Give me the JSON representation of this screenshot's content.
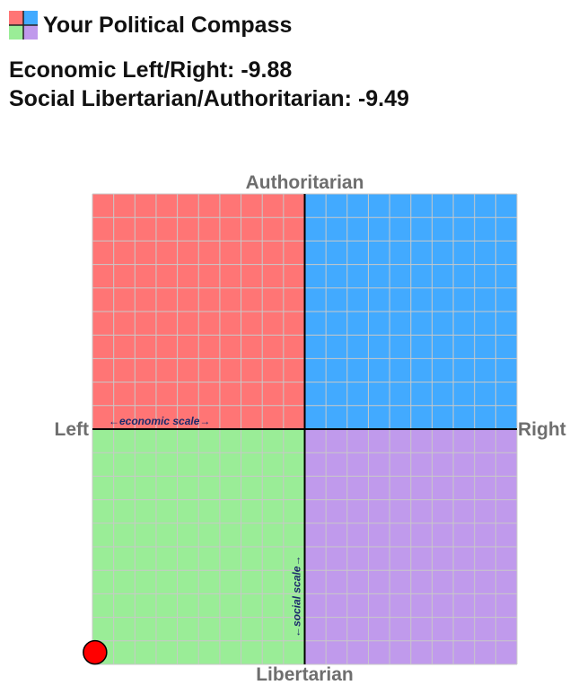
{
  "app": {
    "title": "Your Political Compass"
  },
  "scores": {
    "economic_label": "Economic Left/Right: -9.88",
    "social_label": "Social Libertarian/Authoritarian: -9.49"
  },
  "chart_data": {
    "type": "scatter",
    "title": "",
    "xlabel_left": "Left",
    "xlabel_right": "Right",
    "ylabel_top": "Authoritarian",
    "ylabel_bottom": "Libertarian",
    "economic_scale_label": "←economic scale→",
    "social_scale_label": "←social scale→",
    "xlim": [
      -10,
      10
    ],
    "ylim": [
      -10,
      10
    ],
    "grid": true,
    "grid_divisions": 20,
    "quadrants": {
      "authoritarian_left": "#ff7575",
      "authoritarian_right": "#42aaff",
      "libertarian_left": "#9aed97",
      "libertarian_right": "#c09aec"
    },
    "grid_color": "#c8c8c8",
    "axis_color": "#000000",
    "points": [
      {
        "x": -9.88,
        "y": -9.49,
        "color": "#ff0000"
      }
    ]
  }
}
